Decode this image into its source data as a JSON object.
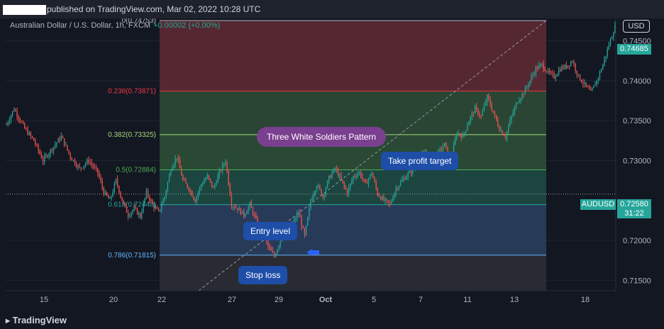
{
  "header": {
    "published_text": "published on TradingView.com, Mar 02, 2022 10:28 UTC",
    "symbol_line": "Australian Dollar / U.S. Dollar, 1h, FXCM",
    "change": "+0.00002 (+0.00%)"
  },
  "currency_button": "USD",
  "price_badge": "0.74685",
  "last_label": "AUDUSD",
  "last_price": "0.72580",
  "countdown": "31:22",
  "footer_logo": "TradingView",
  "callouts": {
    "pattern": "Three White Soldiers Pattern",
    "take_profit": "Take profit target",
    "entry": "Entry level",
    "stop": "Stop loss"
  },
  "colors": {
    "up": "#26a69a",
    "down": "#ef5350",
    "background": "#131722"
  },
  "chart_data": {
    "type": "candlestick",
    "series_label": "Australian Dollar / U.S. Dollar, 1h, FXCM",
    "y_ticks": [
      0.745,
      0.74,
      0.735,
      0.73,
      0.72,
      0.715
    ],
    "y_tick_labels": [
      "0.74500",
      "0.74000",
      "0.73500",
      "0.73000",
      "0.72000",
      "0.71500"
    ],
    "ylim": [
      0.7137,
      0.7478
    ],
    "x_tick_labels": [
      "15",
      "20",
      "22",
      "27",
      "29",
      "Oct",
      "5",
      "7",
      "11",
      "13",
      "18"
    ],
    "last_price": 0.7258,
    "current_price": 0.74685,
    "fibonacci": {
      "levels": [
        {
          "ratio": "0",
          "price": 0.74753,
          "label": "0(0.74753)",
          "color": "#b2b5be",
          "fill": "#5d2a33"
        },
        {
          "ratio": "0.236",
          "price": 0.73871,
          "label": "0.236(0.73871)",
          "color": "#f23645",
          "fill": "#2e4a36"
        },
        {
          "ratio": "0.382",
          "price": 0.73325,
          "label": "0.382(0.73325)",
          "color": "#a3d977",
          "fill": "#2c4f36"
        },
        {
          "ratio": "0.5",
          "price": 0.72884,
          "label": "0.5(0.72884)",
          "color": "#4caf50",
          "fill": "#1e4a44"
        },
        {
          "ratio": "0.618",
          "price": 0.72448,
          "label": "0.618(0.72448)",
          "color": "#26a69a",
          "fill": "#2a3f5e"
        },
        {
          "ratio": "0.786",
          "price": 0.71815,
          "label": "0.786(0.71815)",
          "color": "#5fb7ff",
          "fill": "#2b2d33"
        }
      ],
      "bottom": 0.7137
    },
    "path_points": [
      [
        0,
        0.7345
      ],
      [
        5,
        0.7365
      ],
      [
        12,
        0.734
      ],
      [
        18,
        0.7325
      ],
      [
        24,
        0.73
      ],
      [
        30,
        0.7315
      ],
      [
        36,
        0.733
      ],
      [
        42,
        0.7305
      ],
      [
        48,
        0.729
      ],
      [
        54,
        0.73
      ],
      [
        60,
        0.7285
      ],
      [
        64,
        0.726
      ],
      [
        68,
        0.725
      ],
      [
        72,
        0.7275
      ],
      [
        76,
        0.725
      ],
      [
        80,
        0.7232
      ],
      [
        84,
        0.724
      ],
      [
        88,
        0.723
      ],
      [
        92,
        0.726
      ],
      [
        96,
        0.7245
      ],
      [
        100,
        0.7235
      ],
      [
        104,
        0.7255
      ],
      [
        108,
        0.729
      ],
      [
        112,
        0.7305
      ],
      [
        116,
        0.7275
      ],
      [
        120,
        0.7265
      ],
      [
        124,
        0.725
      ],
      [
        128,
        0.727
      ],
      [
        132,
        0.728
      ],
      [
        136,
        0.7265
      ],
      [
        140,
        0.7285
      ],
      [
        144,
        0.73
      ],
      [
        148,
        0.7245
      ],
      [
        152,
        0.724
      ],
      [
        156,
        0.7232
      ],
      [
        160,
        0.7245
      ],
      [
        164,
        0.7225
      ],
      [
        168,
        0.7215
      ],
      [
        172,
        0.7192
      ],
      [
        176,
        0.718
      ],
      [
        180,
        0.72
      ],
      [
        184,
        0.7215
      ],
      [
        188,
        0.722
      ],
      [
        192,
        0.7235
      ],
      [
        196,
        0.7205
      ],
      [
        200,
        0.725
      ],
      [
        204,
        0.727
      ],
      [
        208,
        0.7255
      ],
      [
        212,
        0.7278
      ],
      [
        216,
        0.729
      ],
      [
        220,
        0.7275
      ],
      [
        224,
        0.726
      ],
      [
        228,
        0.728
      ],
      [
        232,
        0.7285
      ],
      [
        236,
        0.727
      ],
      [
        240,
        0.7285
      ],
      [
        244,
        0.7258
      ],
      [
        248,
        0.725
      ],
      [
        252,
        0.7245
      ],
      [
        256,
        0.7265
      ],
      [
        260,
        0.7275
      ],
      [
        264,
        0.7283
      ],
      [
        268,
        0.729
      ],
      [
        272,
        0.7305
      ],
      [
        276,
        0.731
      ],
      [
        280,
        0.73
      ],
      [
        284,
        0.731
      ],
      [
        288,
        0.732
      ],
      [
        292,
        0.73
      ],
      [
        296,
        0.7335
      ],
      [
        300,
        0.733
      ],
      [
        304,
        0.735
      ],
      [
        308,
        0.7365
      ],
      [
        312,
        0.7355
      ],
      [
        316,
        0.738
      ],
      [
        320,
        0.736
      ],
      [
        324,
        0.734
      ],
      [
        328,
        0.733
      ],
      [
        332,
        0.7355
      ],
      [
        336,
        0.7375
      ],
      [
        340,
        0.7385
      ],
      [
        344,
        0.74
      ],
      [
        348,
        0.7415
      ],
      [
        352,
        0.742
      ],
      [
        356,
        0.741
      ],
      [
        360,
        0.7405
      ],
      [
        364,
        0.7415
      ],
      [
        368,
        0.7418
      ],
      [
        372,
        0.7425
      ],
      [
        376,
        0.7405
      ],
      [
        380,
        0.7395
      ],
      [
        384,
        0.7385
      ],
      [
        388,
        0.74
      ],
      [
        392,
        0.742
      ],
      [
        396,
        0.7445
      ],
      [
        400,
        0.7468
      ]
    ]
  }
}
